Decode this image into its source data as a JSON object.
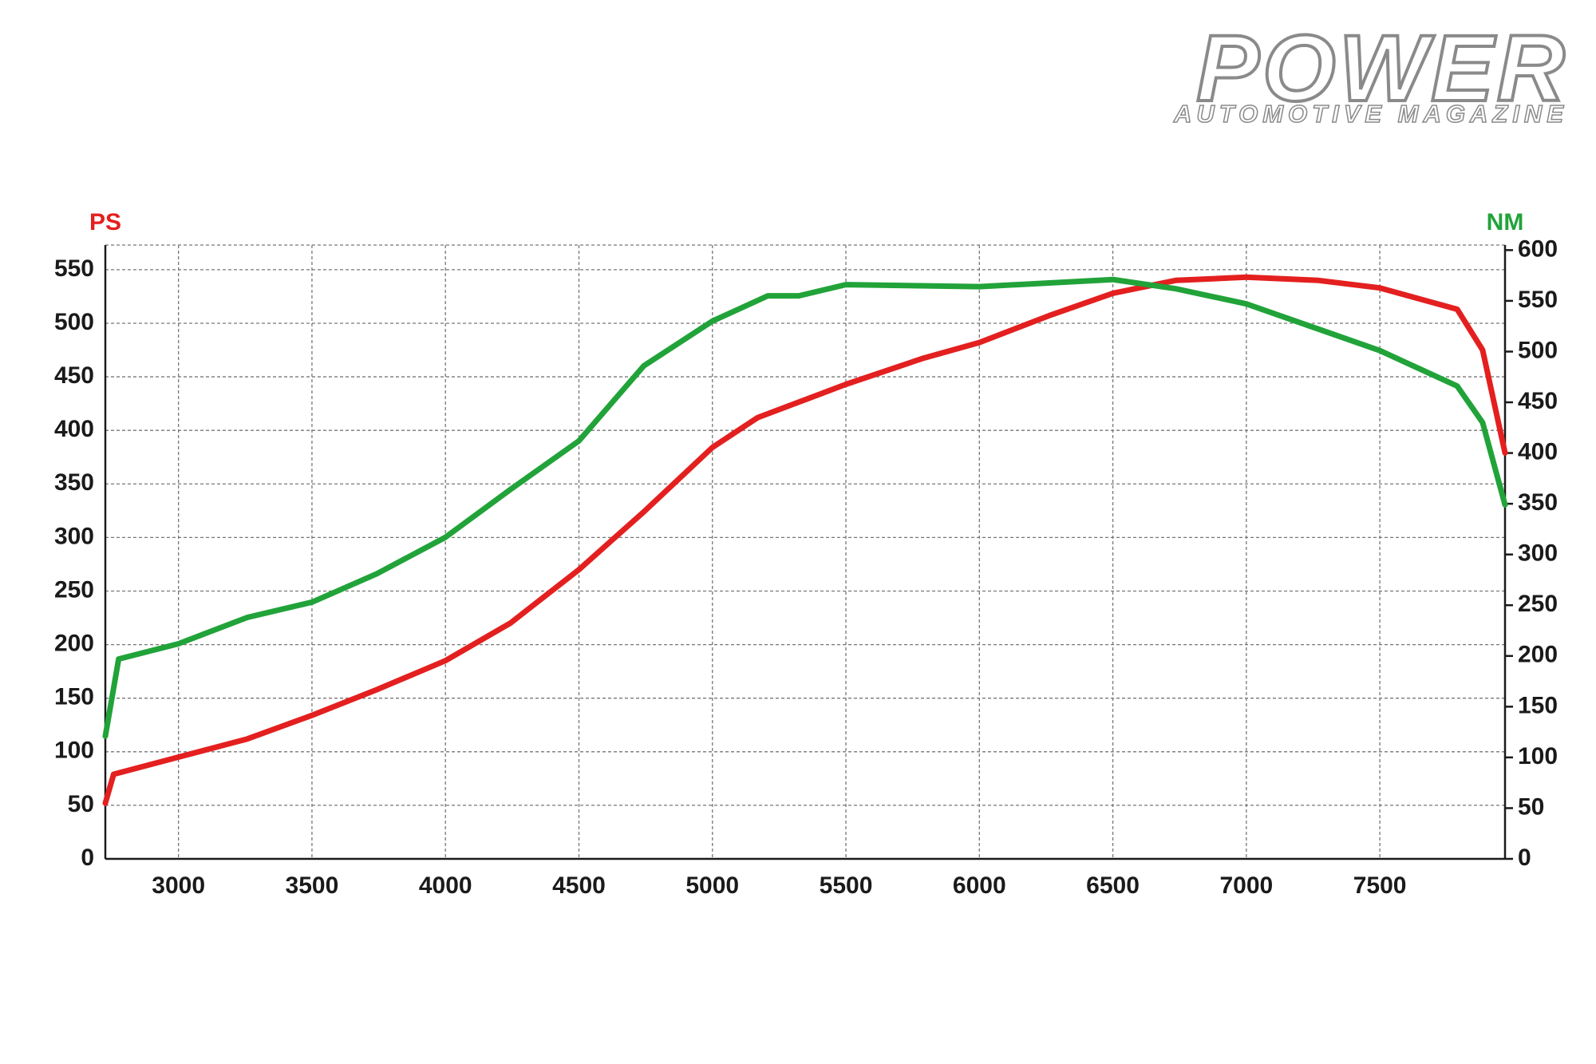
{
  "brand": {
    "name": "POWER",
    "tagline": "AUTOMOTIVE MAGAZINE"
  },
  "chart_data": {
    "type": "line",
    "y_label": "PS",
    "y2_label": "NM",
    "xlim": [
      2726,
      7969
    ],
    "xticks": [
      3000,
      3500,
      4000,
      4500,
      5000,
      5500,
      6000,
      6500,
      7000,
      7500
    ],
    "ylim": [
      0,
      573
    ],
    "yticks": [
      0,
      50,
      100,
      150,
      200,
      250,
      300,
      350,
      400,
      450,
      500,
      550
    ],
    "y2lim": [
      0,
      605
    ],
    "y2ticks": [
      0,
      50,
      100,
      150,
      200,
      250,
      300,
      350,
      400,
      450,
      500,
      550,
      600
    ],
    "grid": true,
    "series": [
      {
        "color": "#e3201f",
        "x": [
          2726,
          2757,
          3000,
          3258,
          3500,
          3743,
          4000,
          4243,
          4500,
          4743,
          5000,
          5170,
          5500,
          5785,
          6000,
          6260,
          6500,
          6735,
          7000,
          7270,
          7500,
          7790,
          7885,
          7969
        ],
        "values": [
          52,
          79,
          95,
          112,
          134,
          158,
          185,
          220,
          270,
          324,
          384,
          412,
          443,
          467,
          482,
          507,
          528,
          540,
          543,
          540,
          533,
          513,
          475,
          379
        ]
      },
      {
        "color": "#21a339",
        "axis": "y2",
        "x": [
          2726,
          2776,
          3000,
          3258,
          3500,
          3743,
          4000,
          4243,
          4500,
          4743,
          5000,
          5208,
          5324,
          5500,
          6000,
          6500,
          6735,
          7000,
          7500,
          7790,
          7885,
          7969
        ],
        "values": [
          121,
          197,
          212,
          238,
          253,
          281,
          317,
          364,
          412,
          486,
          530,
          555,
          555,
          566,
          564,
          571,
          562,
          547,
          501,
          466,
          430,
          349
        ]
      }
    ]
  }
}
